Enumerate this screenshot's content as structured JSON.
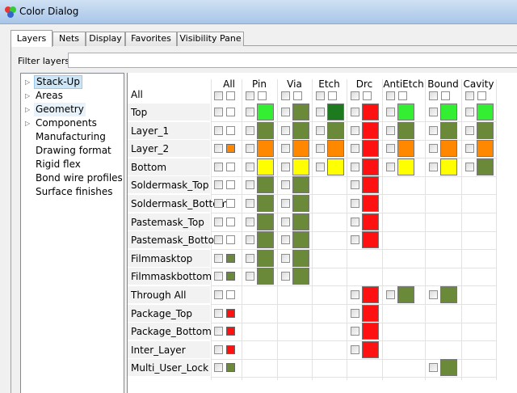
{
  "window": {
    "title": "Color Dialog"
  },
  "tabs": [
    "Layers",
    "Nets",
    "Display",
    "Favorites",
    "Visibility Pane"
  ],
  "filter": {
    "label": "Filter layers:",
    "value": ""
  },
  "tree": [
    {
      "label": "Stack-Up",
      "expandable": true,
      "selected": true
    },
    {
      "label": "Areas",
      "expandable": true
    },
    {
      "label": "Geometry",
      "expandable": true,
      "highlight": true
    },
    {
      "label": "Components",
      "expandable": true
    },
    {
      "label": "Manufacturing",
      "expandable": false
    },
    {
      "label": "Drawing format",
      "expandable": false
    },
    {
      "label": "Rigid flex",
      "expandable": false
    },
    {
      "label": "Bond wire profiles",
      "expandable": false
    },
    {
      "label": "Surface finishes",
      "expandable": false
    }
  ],
  "grid": {
    "all_header": "All",
    "all_row_label": "All",
    "columns": [
      "Pin",
      "Via",
      "Etch",
      "Drc",
      "AntiEtch",
      "Bound",
      "Cavity"
    ],
    "colors": {
      "lg": "#33ee33",
      "dg": "#6a8a3a",
      "vd": "#1e7a1e",
      "r": "#ff1111",
      "o": "#ff8800",
      "y": "#ffff00"
    },
    "rows": [
      {
        "name": "Top",
        "all": "W",
        "cells": [
          "lg",
          "dg",
          "vd",
          "r",
          "lg",
          "lg",
          "lg"
        ]
      },
      {
        "name": "Layer_1",
        "all": "W",
        "cells": [
          "dg",
          "dg",
          "dg",
          "r",
          "dg",
          "dg",
          "dg"
        ]
      },
      {
        "name": "Layer_2",
        "all": "o",
        "cells": [
          "o",
          "o",
          "o",
          "r",
          "o",
          "o",
          "o"
        ]
      },
      {
        "name": "Bottom",
        "all": "W",
        "cells": [
          "y",
          "y",
          "y",
          "r",
          "y",
          "y",
          "dg"
        ]
      },
      {
        "name": "Soldermask_Top",
        "all": "W",
        "cells": [
          "dg",
          "dg",
          null,
          "r",
          null,
          null,
          null
        ]
      },
      {
        "name": "Soldermask_Bottom",
        "all": "W",
        "cells": [
          "dg",
          "dg",
          null,
          "r",
          null,
          null,
          null
        ]
      },
      {
        "name": "Pastemask_Top",
        "all": "W",
        "cells": [
          "dg",
          "dg",
          null,
          "r",
          null,
          null,
          null
        ]
      },
      {
        "name": "Pastemask_Bottom",
        "all": "W",
        "cells": [
          "dg",
          "dg",
          null,
          "r",
          null,
          null,
          null
        ]
      },
      {
        "name": "Filmmasktop",
        "all": "dg",
        "cells": [
          "dg",
          "dg",
          null,
          null,
          null,
          null,
          null
        ]
      },
      {
        "name": "Filmmaskbottom",
        "all": "dg",
        "cells": [
          "dg",
          "dg",
          null,
          null,
          null,
          null,
          null
        ]
      },
      {
        "name": "Through All",
        "all": "W",
        "cells": [
          null,
          null,
          null,
          "r",
          "dg",
          "dg",
          null
        ]
      },
      {
        "name": "Package_Top",
        "all": "r",
        "cells": [
          null,
          null,
          null,
          "r",
          null,
          null,
          null
        ]
      },
      {
        "name": "Package_Bottom",
        "all": "r",
        "cells": [
          null,
          null,
          null,
          "r",
          null,
          null,
          null
        ]
      },
      {
        "name": "Inter_Layer",
        "all": "r",
        "cells": [
          null,
          null,
          null,
          "r",
          null,
          null,
          null
        ]
      },
      {
        "name": "Multi_User_Lock",
        "all": "dg",
        "cells": [
          null,
          null,
          null,
          null,
          null,
          "dg",
          null
        ]
      }
    ]
  }
}
